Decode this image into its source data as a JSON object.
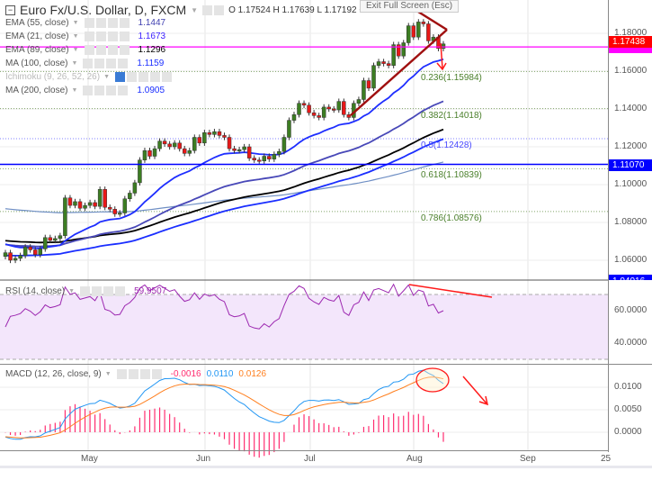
{
  "header": {
    "symbol": "Euro Fx/U.S. Dollar, D, FXCM",
    "ohlc": "O 1.17524 H 1.17639 L 1.17192 C 1.17438",
    "tooltip": "Exit Full Screen (Esc)"
  },
  "indicators": [
    {
      "label": "EMA (55, close)",
      "value": "1.1447",
      "color": "#3f3fb0"
    },
    {
      "label": "EMA (21, close)",
      "value": "1.1673",
      "color": "#3a1eff"
    },
    {
      "label": "EMA (89, close)",
      "value": "1.1296",
      "color": "#000000"
    },
    {
      "label": "MA (100, close)",
      "value": "1.1159",
      "color": "#1a2eff"
    },
    {
      "label": "Ichimoku (9, 26, 52, 26)",
      "value": "",
      "color": "#bbbbbb"
    },
    {
      "label": "MA (200, close)",
      "value": "1.0905",
      "color": "#1a2eff"
    }
  ],
  "rsi": {
    "label": "RSI (14, close)",
    "value": "59.9507",
    "color": "#9c27b0",
    "ticks": [
      "60.0000",
      "40.0000"
    ]
  },
  "macd": {
    "label": "MACD (12, 26, close, 9)",
    "hist": "-0.0016",
    "macd": "0.0110",
    "signal": "0.0126",
    "colors": {
      "hist": "#ff2d70",
      "macd": "#2196f3",
      "signal": "#ff7f1e"
    },
    "ticks": [
      "0.0100",
      "0.0050",
      "0.0000"
    ]
  },
  "price_axis": {
    "ticks": [
      "1.18000",
      "1.16000",
      "1.14000",
      "1.12000",
      "1.10000",
      "1.08000",
      "1.06000"
    ],
    "last_price": {
      "label": "1.17438",
      "color": "#ff0000"
    },
    "magenta_line": {
      "value": 1.1728,
      "color": "#ff00ff"
    },
    "blue_line": {
      "label": "1.11070",
      "value": 1.1107,
      "color": "#0000ff"
    },
    "navy_line": {
      "label": "1.04016",
      "color": "#0000ff"
    }
  },
  "fib_levels": [
    {
      "label": "0.236(1.15984)",
      "value": 1.15984,
      "color": "#4a7f2a"
    },
    {
      "label": "0.382(1.14018)",
      "value": 1.14018,
      "color": "#4a7f2a"
    },
    {
      "label": "0.5(1.12428)",
      "value": 1.12428,
      "color": "#4a4aff"
    },
    {
      "label": "0.618(1.10839)",
      "value": 1.10839,
      "color": "#4a7f2a"
    },
    {
      "label": "0.786(1.08576)",
      "value": 1.08576,
      "color": "#4a7f2a"
    }
  ],
  "time_axis": {
    "months": [
      "May",
      "Jun",
      "Jul",
      "Aug",
      "Sep",
      "25"
    ]
  },
  "chart_data": {
    "type": "candlestick",
    "title": "Euro Fx/U.S. Dollar, D, FXCM",
    "ylim": [
      1.05,
      1.19
    ],
    "grid": true,
    "up_color": "#3c7d22",
    "down_color": "#e81818",
    "closes": [
      1.064,
      1.06,
      1.061,
      1.0625,
      1.067,
      1.0655,
      1.063,
      1.066,
      1.072,
      1.0705,
      1.0715,
      1.073,
      1.093,
      1.089,
      1.091,
      1.0875,
      1.089,
      1.0905,
      1.0885,
      1.0975,
      1.088,
      1.087,
      1.0845,
      1.085,
      1.0925,
      1.0955,
      1.101,
      1.113,
      1.118,
      1.115,
      1.119,
      1.123,
      1.1215,
      1.12,
      1.122,
      1.119,
      1.1165,
      1.118,
      1.125,
      1.122,
      1.1275,
      1.1265,
      1.128,
      1.126,
      1.125,
      1.119,
      1.118,
      1.1185,
      1.12,
      1.114,
      1.113,
      1.1125,
      1.115,
      1.1135,
      1.116,
      1.1175,
      1.125,
      1.134,
      1.137,
      1.143,
      1.142,
      1.138,
      1.1365,
      1.1355,
      1.141,
      1.14,
      1.1395,
      1.144,
      1.137,
      1.1355,
      1.143,
      1.145,
      1.155,
      1.151,
      1.163,
      1.165,
      1.164,
      1.163,
      1.174,
      1.168,
      1.175,
      1.184,
      1.178,
      1.186,
      1.185,
      1.176,
      1.178,
      1.172,
      1.1744
    ]
  }
}
